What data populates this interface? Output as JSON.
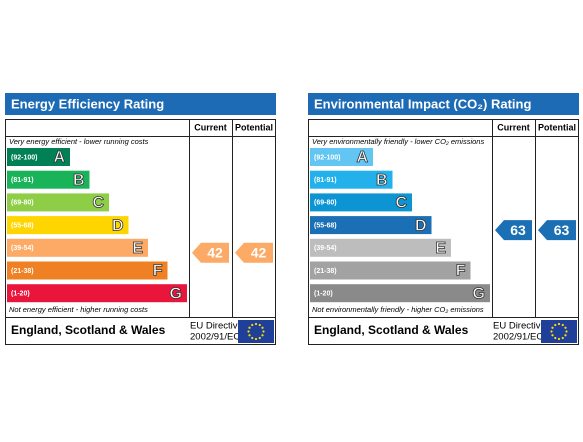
{
  "panels": [
    {
      "title": "Energy Efficiency Rating",
      "header": {
        "current": "Current",
        "potential": "Potential"
      },
      "top_note": "Very energy efficient - lower running costs",
      "bottom_note": "Not energy efficient - higher running costs",
      "bands": [
        {
          "range": "(92-100)",
          "letter": "A",
          "color": "#008054"
        },
        {
          "range": "(81-91)",
          "letter": "B",
          "color": "#19b459"
        },
        {
          "range": "(69-80)",
          "letter": "C",
          "color": "#8dce46"
        },
        {
          "range": "(55-68)",
          "letter": "D",
          "color": "#ffd500"
        },
        {
          "range": "(39-54)",
          "letter": "E",
          "color": "#fcaa65"
        },
        {
          "range": "(21-38)",
          "letter": "F",
          "color": "#ef8023"
        },
        {
          "range": "(1-20)",
          "letter": "G",
          "color": "#e9153b"
        }
      ],
      "current": 42,
      "potential": 42,
      "footer": {
        "region": "England, Scotland & Wales",
        "directive": "EU Directive",
        "directive_no": "2002/91/EC"
      }
    },
    {
      "title": "Environmental Impact (CO₂) Rating",
      "header": {
        "current": "Current",
        "potential": "Potential"
      },
      "top_note": "Very environmentally friendly - lower CO₂ emissions",
      "bottom_note": "Not environmentally friendly - higher CO₂ emissions",
      "bands": [
        {
          "range": "(92-100)",
          "letter": "A",
          "color": "#63c6f2"
        },
        {
          "range": "(81-91)",
          "letter": "B",
          "color": "#22b1ea"
        },
        {
          "range": "(69-80)",
          "letter": "C",
          "color": "#0d94d2"
        },
        {
          "range": "(55-68)",
          "letter": "D",
          "color": "#1a6fb5"
        },
        {
          "range": "(39-54)",
          "letter": "E",
          "color": "#bdbdbd"
        },
        {
          "range": "(21-38)",
          "letter": "F",
          "color": "#a2a2a2"
        },
        {
          "range": "(1-20)",
          "letter": "G",
          "color": "#8a8a8a"
        }
      ],
      "current": 63,
      "potential": 63,
      "footer": {
        "region": "England, Scotland & Wales",
        "directive": "EU Directive",
        "directive_no": "2002/91/EC"
      }
    }
  ]
}
